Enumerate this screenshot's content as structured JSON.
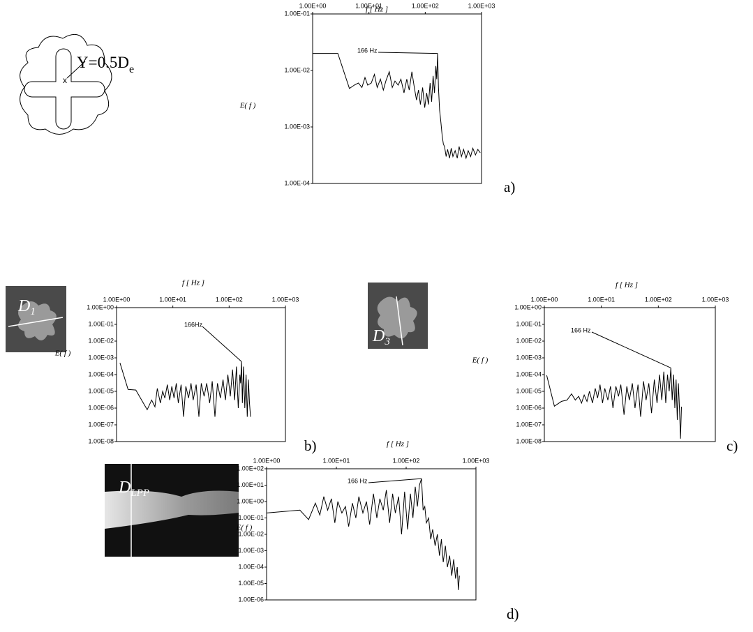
{
  "chart_data": [
    {
      "type": "line",
      "x_label": "f [ Hz ]",
      "y_label": "E( f )",
      "panel": "a)",
      "xscale": "log",
      "yscale": "log",
      "color": "#000000",
      "inset": {
        "label": "Y=0.5D",
        "label_sub": "e",
        "marker": "x"
      },
      "xlim": [
        1,
        1000
      ],
      "ylim": [
        0.0001,
        0.1
      ],
      "xticks": [
        {
          "value": 1,
          "label": "1.00E+00"
        },
        {
          "value": 10,
          "label": "1.00E+01"
        },
        {
          "value": 100,
          "label": "1.00E+02"
        },
        {
          "value": 1000,
          "label": "1.00E+03"
        }
      ],
      "yticks": [
        {
          "value": 0.1,
          "label": "1.00E-01"
        },
        {
          "value": 0.01,
          "label": "1.00E-02"
        },
        {
          "value": 0.001,
          "label": "1.00E-03"
        },
        {
          "value": 0.0001,
          "label": "1.00E-04"
        }
      ],
      "annotation": {
        "text": "166 Hz",
        "x": 166,
        "y": 0.02
      },
      "x": [
        1,
        2.8,
        4.5,
        5.5,
        6.5,
        7.5,
        8.5,
        9.5,
        11,
        12.5,
        14,
        16,
        18,
        20,
        23,
        26,
        29,
        33,
        37,
        42,
        47,
        52,
        58,
        64,
        70,
        76,
        82,
        90,
        98,
        106,
        114,
        122,
        130,
        138,
        146,
        154,
        160,
        166,
        172,
        180,
        190,
        200,
        210,
        220,
        235,
        250,
        270,
        290,
        310,
        340,
        370,
        400,
        440,
        480,
        530,
        580,
        640,
        700,
        780,
        860,
        950
      ],
      "values": [
        0.02,
        0.02,
        0.0048,
        0.0055,
        0.006,
        0.005,
        0.0075,
        0.0055,
        0.006,
        0.0085,
        0.005,
        0.007,
        0.0045,
        0.0065,
        0.0095,
        0.005,
        0.0065,
        0.0055,
        0.007,
        0.004,
        0.007,
        0.0045,
        0.0095,
        0.005,
        0.003,
        0.0045,
        0.0025,
        0.005,
        0.0022,
        0.004,
        0.0025,
        0.006,
        0.0028,
        0.008,
        0.004,
        0.012,
        0.007,
        0.02,
        0.005,
        0.002,
        0.0012,
        0.0007,
        0.0005,
        0.00045,
        0.0003,
        0.0004,
        0.00028,
        0.00042,
        0.0003,
        0.00038,
        0.00028,
        0.00045,
        0.0003,
        0.0004,
        0.00028,
        0.00038,
        0.0003,
        0.00042,
        0.00032,
        0.0004,
        0.00035
      ]
    },
    {
      "type": "line",
      "x_label": "f [ Hz ]",
      "y_label": "E( f )",
      "panel": "b)",
      "xscale": "log",
      "yscale": "log",
      "color": "#000000",
      "inset": {
        "label": "D",
        "label_sub": "1"
      },
      "xlim": [
        1,
        1000
      ],
      "ylim": [
        1e-08,
        1
      ],
      "xticks": [
        {
          "value": 1,
          "label": "1.00E+00"
        },
        {
          "value": 10,
          "label": "1.00E+01"
        },
        {
          "value": 100,
          "label": "1.00E+02"
        },
        {
          "value": 1000,
          "label": "1.00E+03"
        }
      ],
      "yticks": [
        {
          "value": 1,
          "label": "1.00E+00"
        },
        {
          "value": 0.1,
          "label": "1.00E-01"
        },
        {
          "value": 0.01,
          "label": "1.00E-02"
        },
        {
          "value": 0.001,
          "label": "1.00E-03"
        },
        {
          "value": 0.0001,
          "label": "1.00E-04"
        },
        {
          "value": 1e-05,
          "label": "1.00E-05"
        },
        {
          "value": 1e-06,
          "label": "1.00E-06"
        },
        {
          "value": 1e-07,
          "label": "1.00E-07"
        },
        {
          "value": 1e-08,
          "label": "1.00E-08"
        }
      ],
      "annotation": {
        "text": "166Hz",
        "x": 166,
        "y": 0.0006
      },
      "x": [
        1.15,
        1.6,
        2.2,
        3.5,
        4.2,
        4.8,
        5.3,
        6,
        6.6,
        7.2,
        8,
        8.8,
        9.6,
        10.5,
        11.5,
        12.5,
        14,
        15.5,
        17,
        19,
        21,
        23,
        26,
        29,
        32,
        36,
        40,
        45,
        50,
        56,
        62,
        70,
        78,
        86,
        95,
        105,
        115,
        125,
        135,
        145,
        155,
        160,
        166,
        172,
        180,
        190,
        200,
        210,
        220,
        230,
        240
      ],
      "values": [
        0.0005,
        1.3e-05,
        1.2e-05,
        8e-07,
        3e-06,
        1.2e-06,
        1.5e-05,
        2e-06,
        1e-05,
        4e-06,
        2.5e-05,
        3e-06,
        2e-05,
        4e-06,
        3e-05,
        2e-06,
        2.5e-05,
        3e-07,
        2e-05,
        4e-06,
        3e-05,
        3e-06,
        2.5e-05,
        3e-07,
        3e-05,
        5e-06,
        3e-05,
        2e-06,
        4e-05,
        3e-07,
        3e-05,
        4e-06,
        5e-05,
        3e-06,
        0.0001,
        5e-06,
        0.0002,
        3e-06,
        0.0003,
        1e-06,
        0.0001,
        3e-05,
        0.0006,
        2e-06,
        0.0003,
        1e-06,
        0.0001,
        3e-07,
        5e-05,
        2e-06,
        3e-07
      ]
    },
    {
      "type": "line",
      "x_label": "f [ Hz ]",
      "y_label": "E( f )",
      "panel": "c)",
      "xscale": "log",
      "yscale": "log",
      "color": "#000000",
      "inset": {
        "label": "D",
        "label_sub": "3"
      },
      "xlim": [
        1,
        1000
      ],
      "ylim": [
        1e-08,
        1
      ],
      "xticks": [
        {
          "value": 1,
          "label": "1.00E+00"
        },
        {
          "value": 10,
          "label": "1.00E+01"
        },
        {
          "value": 100,
          "label": "1.00E+02"
        },
        {
          "value": 1000,
          "label": "1.00E+03"
        }
      ],
      "yticks": [
        {
          "value": 1,
          "label": "1.00E+00"
        },
        {
          "value": 0.1,
          "label": "1.00E-01"
        },
        {
          "value": 0.01,
          "label": "1.00E-02"
        },
        {
          "value": 0.001,
          "label": "1.00E-03"
        },
        {
          "value": 0.0001,
          "label": "1.00E-04"
        },
        {
          "value": 1e-05,
          "label": "1.00E-05"
        },
        {
          "value": 1e-06,
          "label": "1.00E-06"
        },
        {
          "value": 1e-07,
          "label": "1.00E-07"
        },
        {
          "value": 1e-08,
          "label": "1.00E-08"
        }
      ],
      "annotation": {
        "text": "166 Hz",
        "x": 166,
        "y": 0.00025
      },
      "x": [
        1.1,
        1.5,
        2,
        2.5,
        3,
        3.5,
        4,
        4.5,
        5,
        5.6,
        6.2,
        7,
        7.8,
        8.6,
        9.5,
        10.5,
        11.5,
        13,
        14.5,
        16,
        18,
        20,
        22,
        25,
        28,
        31,
        35,
        39,
        44,
        49,
        55,
        61,
        68,
        76,
        85,
        95,
        105,
        115,
        125,
        135,
        145,
        155,
        166,
        175,
        185,
        195,
        205,
        215,
        225,
        235,
        245,
        255
      ],
      "values": [
        9e-05,
        1.3e-06,
        2.5e-06,
        3e-06,
        7e-06,
        3e-06,
        5e-06,
        2e-06,
        6e-06,
        2.5e-06,
        1e-05,
        2e-06,
        1.5e-05,
        4e-06,
        2.5e-05,
        2e-06,
        1.5e-05,
        3e-06,
        2e-05,
        1e-06,
        2e-05,
        5e-06,
        2.5e-05,
        4e-07,
        2e-05,
        3e-06,
        3e-05,
        1e-06,
        2.5e-05,
        3e-07,
        4e-05,
        3e-06,
        3e-05,
        5e-07,
        5e-05,
        2e-06,
        0.0001,
        3e-06,
        0.00015,
        2e-06,
        0.0001,
        1e-05,
        0.00025,
        3e-06,
        0.0001,
        1e-06,
        5e-05,
        2e-07,
        3e-05,
        1e-06,
        1.5e-08,
        1.2e-06
      ]
    },
    {
      "type": "line",
      "x_label": "f [ Hz ]",
      "y_label": "E( f )",
      "panel": "d)",
      "xscale": "log",
      "yscale": "log",
      "color": "#000000",
      "inset": {
        "label": "D",
        "label_sub": "LPP"
      },
      "xlim": [
        1,
        1000
      ],
      "ylim": [
        1e-06,
        100
      ],
      "xticks": [
        {
          "value": 1,
          "label": "1.00E+00"
        },
        {
          "value": 10,
          "label": "1.00E+01"
        },
        {
          "value": 100,
          "label": "1.00E+02"
        },
        {
          "value": 1000,
          "label": "1.00E+03"
        }
      ],
      "yticks": [
        {
          "value": 100,
          "label": "1.00E+02"
        },
        {
          "value": 10,
          "label": "1.00E+01"
        },
        {
          "value": 1,
          "label": "1.00E+00"
        },
        {
          "value": 0.1,
          "label": "1.00E-01"
        },
        {
          "value": 0.01,
          "label": "1.00E-02"
        },
        {
          "value": 0.001,
          "label": "1.00E-03"
        },
        {
          "value": 0.0001,
          "label": "1.00E-04"
        },
        {
          "value": 1e-05,
          "label": "1.00E-05"
        },
        {
          "value": 1e-06,
          "label": "1.00E-06"
        }
      ],
      "annotation": {
        "text": "166 Hz",
        "x": 166,
        "y": 25
      },
      "x": [
        1,
        3,
        4,
        5,
        5.8,
        6.6,
        7.5,
        8.5,
        9.5,
        10.5,
        12,
        13.5,
        15,
        17,
        19,
        21,
        24,
        27,
        30,
        34,
        38,
        42,
        47,
        52,
        58,
        64,
        70,
        78,
        86,
        95,
        105,
        115,
        125,
        135,
        145,
        155,
        166,
        175,
        185,
        195,
        210,
        225,
        240,
        260,
        280,
        300,
        320,
        340,
        365,
        390,
        420,
        450,
        480,
        510,
        540,
        560,
        580
      ],
      "values": [
        0.2,
        0.3,
        0.08,
        0.8,
        0.15,
        2,
        0.3,
        1.5,
        0.05,
        1,
        0.2,
        0.5,
        0.03,
        0.8,
        0.1,
        2,
        0.2,
        1,
        0.04,
        3,
        0.1,
        1.5,
        0.3,
        5,
        0.05,
        3,
        0.2,
        2,
        0.01,
        4,
        0.02,
        3,
        0.1,
        8,
        0.5,
        10,
        25,
        0.3,
        0.5,
        0.05,
        0.1,
        0.005,
        0.02,
        0.002,
        0.01,
        0.0005,
        0.005,
        0.0002,
        0.002,
        0.0001,
        0.0005,
        3e-05,
        0.0003,
        2e-05,
        0.0001,
        4e-06,
        3e-05
      ]
    }
  ]
}
